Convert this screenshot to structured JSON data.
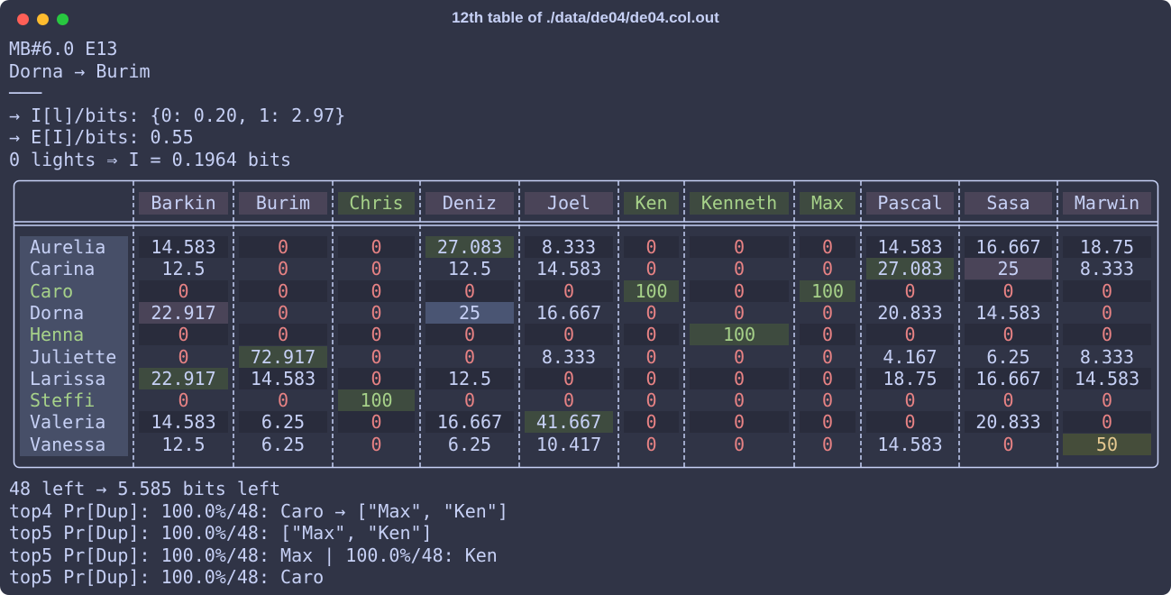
{
  "window": {
    "title": "12th table of ./data/de04/de04.col.out"
  },
  "header_lines": [
    "MB#6.0 E13",
    "Dorna → Burim",
    "───",
    "→ I[l]/bits: {0: 0.20, 1: 2.97}",
    "→ E[I]/bits: 0.55",
    "0 lights ⇒ I = 0.1964 bits"
  ],
  "table": {
    "columns": [
      "Barkin",
      "Burim",
      "Chris",
      "Deniz",
      "Joel",
      "Ken",
      "Kenneth",
      "Max",
      "Pascal",
      "Sasa",
      "Marwin"
    ],
    "rows": [
      {
        "name": "Aurelia",
        "cells": [
          "14.583",
          "0",
          "0",
          "27.083",
          "8.333",
          "0",
          "0",
          "0",
          "14.583",
          "16.667",
          "18.75"
        ]
      },
      {
        "name": "Carina",
        "cells": [
          "12.5",
          "0",
          "0",
          "12.5",
          "14.583",
          "0",
          "0",
          "0",
          "27.083",
          "25",
          "8.333"
        ]
      },
      {
        "name": "Caro",
        "cells": [
          "0",
          "0",
          "0",
          "0",
          "0",
          "100",
          "0",
          "100",
          "0",
          "0",
          "0"
        ]
      },
      {
        "name": "Dorna",
        "cells": [
          "22.917",
          "0",
          "0",
          "25",
          "16.667",
          "0",
          "0",
          "0",
          "20.833",
          "14.583",
          "0"
        ]
      },
      {
        "name": "Henna",
        "cells": [
          "0",
          "0",
          "0",
          "0",
          "0",
          "0",
          "100",
          "0",
          "0",
          "0",
          "0"
        ]
      },
      {
        "name": "Juliette",
        "cells": [
          "0",
          "72.917",
          "0",
          "0",
          "8.333",
          "0",
          "0",
          "0",
          "4.167",
          "6.25",
          "8.333"
        ]
      },
      {
        "name": "Larissa",
        "cells": [
          "22.917",
          "14.583",
          "0",
          "12.5",
          "0",
          "0",
          "0",
          "0",
          "18.75",
          "16.667",
          "14.583"
        ]
      },
      {
        "name": "Steffi",
        "cells": [
          "0",
          "0",
          "100",
          "0",
          "0",
          "0",
          "0",
          "0",
          "0",
          "0",
          "0"
        ]
      },
      {
        "name": "Valeria",
        "cells": [
          "14.583",
          "6.25",
          "0",
          "16.667",
          "41.667",
          "0",
          "0",
          "0",
          "0",
          "20.833",
          "0"
        ]
      },
      {
        "name": "Vanessa",
        "cells": [
          "12.5",
          "6.25",
          "0",
          "6.25",
          "10.417",
          "0",
          "0",
          "0",
          "14.583",
          "0",
          "50"
        ]
      }
    ]
  },
  "footer_lines": [
    "48 left → 5.585 bits left",
    "top4 Pr[Dup]: 100.0%/48: Caro → [\"Max\", \"Ken\"]",
    "top5 Pr[Dup]: 100.0%/48: [\"Max\", \"Ken\"]",
    "top5 Pr[Dup]: 100.0%/48: Max | 100.0%/48: Ken",
    "top5 Pr[Dup]: 100.0%/48: Caro"
  ]
}
